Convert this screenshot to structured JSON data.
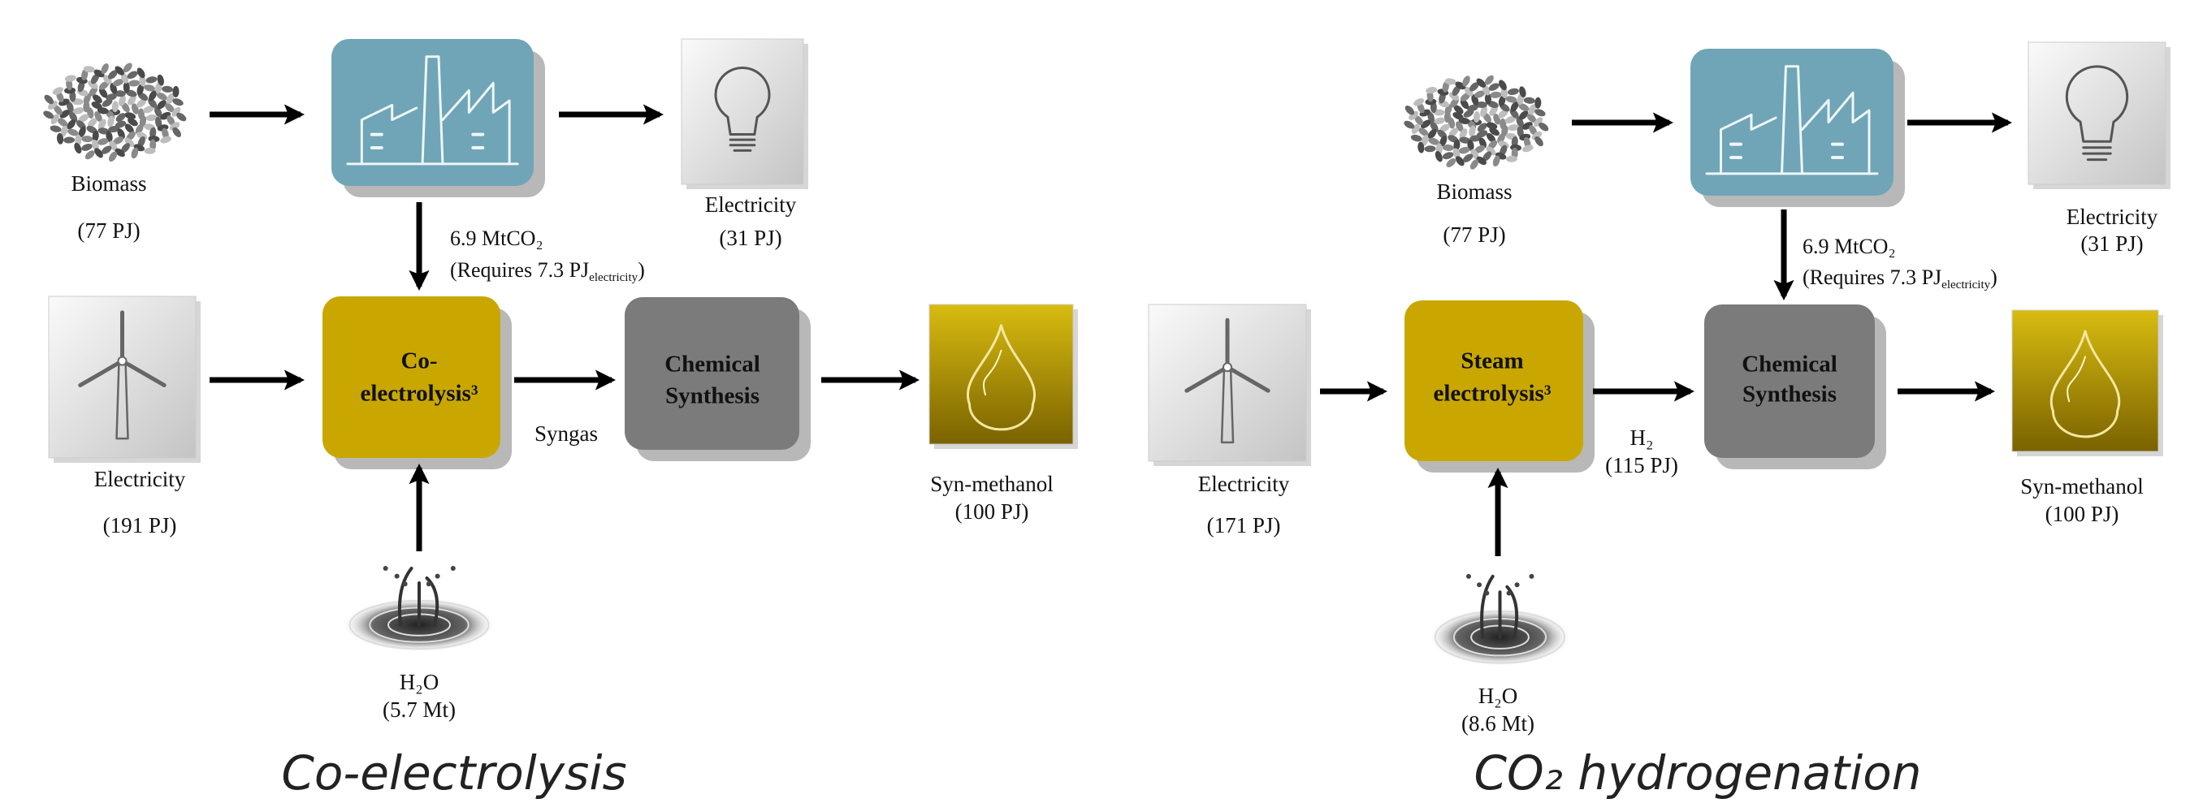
{
  "panels": [
    {
      "caption": "Co-electrolysis",
      "biomass": {
        "label": "Biomass",
        "amount": "(77 PJ)"
      },
      "heat_electricity": {
        "label": "Electricity",
        "amount": "(31 PJ)"
      },
      "co2": {
        "amount": "6.9 MtCO₂",
        "requires": "(Requires 7.3 PJ",
        "requires_sub": "electricity",
        "close": ")"
      },
      "power": {
        "label": "Electricity",
        "amount": "(191 PJ)"
      },
      "electrolysis": {
        "line1": "Co-",
        "line2": "electrolysis³"
      },
      "intermediate": {
        "label": "Syngas"
      },
      "synthesis": {
        "line1": "Chemical",
        "line2": "Synthesis"
      },
      "product": {
        "label": "Syn-methanol",
        "amount": "(100 PJ)"
      },
      "water": {
        "label": "H₂O",
        "amount": "(5.7 Mt)"
      }
    },
    {
      "caption": "CO₂ hydrogenation",
      "biomass": {
        "label": "Biomass",
        "amount": "(77 PJ)"
      },
      "heat_electricity": {
        "label": "Electricity",
        "amount": "(31 PJ)"
      },
      "co2": {
        "amount": "6.9 MtCO₂",
        "requires": "(Requires 7.3 PJ",
        "requires_sub": "electricity",
        "close": ")"
      },
      "power": {
        "label": "Electricity",
        "amount": "(171 PJ)"
      },
      "electrolysis": {
        "line1": "Steam",
        "line2": "electrolysis³"
      },
      "intermediate": {
        "label": "H₂",
        "amount": "(115 PJ)"
      },
      "synthesis": {
        "line1": "Chemical",
        "line2": "Synthesis"
      },
      "product": {
        "label": "Syn-methanol",
        "amount": "(100 PJ)"
      },
      "water": {
        "label": "H₂O",
        "amount": "(8.6 Mt)"
      }
    }
  ]
}
